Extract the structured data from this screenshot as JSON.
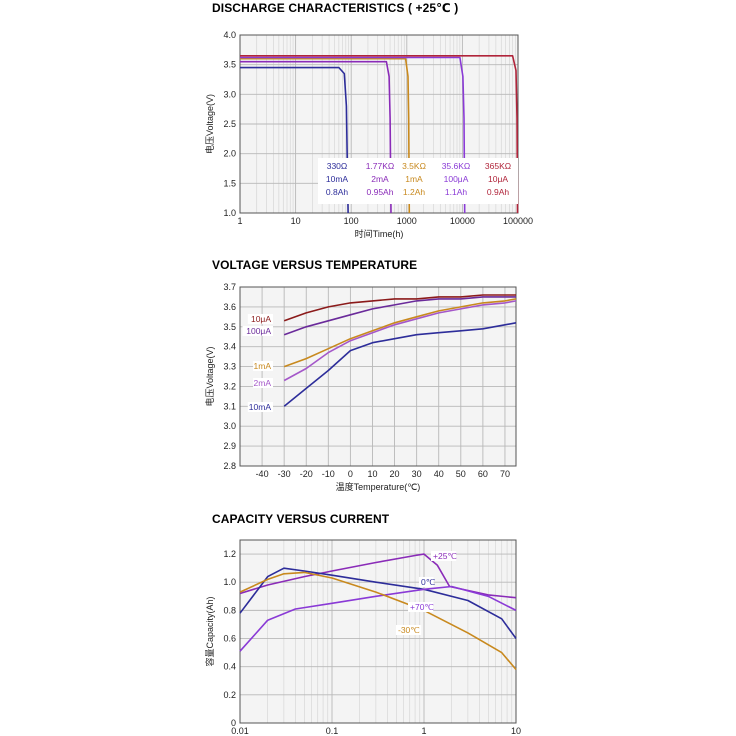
{
  "colors": {
    "navy": "#2d2d9a",
    "purple": "#8a2bb8",
    "orange": "#c8891e",
    "violet": "#8a3ad6",
    "maroon": "#b0243a",
    "dark_red": "#8b1a1a",
    "dark_purple": "#6a2a9a",
    "light_purple": "#a457c9",
    "grid": "#b8b8b8",
    "plot_bg": "#f4f4f4"
  },
  "charts": [
    {
      "title": "DISCHARGE CHARACTERISTICS ( +25℃ )",
      "chart_data": {
        "type": "line",
        "xscale": "log",
        "xlabel": "时间Time(h)",
        "ylabel": "电压Voltage(V)",
        "xlim": [
          1,
          100000
        ],
        "ylim": [
          1.0,
          4.0
        ],
        "xticks": [
          "1",
          "10",
          "100",
          "1000",
          "10000",
          "100000"
        ],
        "yticks": [
          "1.0",
          "1.5",
          "2.0",
          "2.5",
          "3.0",
          "3.5",
          "4.0"
        ],
        "series": [
          {
            "color": "navy",
            "points": [
              [
                1,
                3.45
              ],
              [
                60,
                3.45
              ],
              [
                75,
                3.35
              ],
              [
                82,
                2.8
              ],
              [
                88,
                1.0
              ]
            ]
          },
          {
            "color": "purple",
            "points": [
              [
                1,
                3.55
              ],
              [
                430,
                3.55
              ],
              [
                480,
                3.3
              ],
              [
                500,
                2.6
              ],
              [
                520,
                1.0
              ]
            ]
          },
          {
            "color": "orange",
            "points": [
              [
                1,
                3.6
              ],
              [
                950,
                3.6
              ],
              [
                1050,
                3.3
              ],
              [
                1080,
                2.6
              ],
              [
                1110,
                1.0
              ]
            ]
          },
          {
            "color": "violet",
            "points": [
              [
                1,
                3.62
              ],
              [
                9000,
                3.62
              ],
              [
                10200,
                3.3
              ],
              [
                10700,
                2.6
              ],
              [
                11000,
                1.0
              ]
            ]
          },
          {
            "color": "maroon",
            "points": [
              [
                1,
                3.65
              ],
              [
                80000,
                3.65
              ],
              [
                92000,
                3.4
              ],
              [
                96000,
                2.6
              ],
              [
                98000,
                1.0
              ]
            ]
          }
        ],
        "legend_table": [
          {
            "color": "navy",
            "lines": [
              "330Ω",
              "10mA",
              "0.8Ah"
            ]
          },
          {
            "color": "purple",
            "lines": [
              "1.77KΩ",
              "2mA",
              "0.95Ah"
            ]
          },
          {
            "color": "orange",
            "lines": [
              "3.5KΩ",
              "1mA",
              "1.2Ah"
            ]
          },
          {
            "color": "violet",
            "lines": [
              "35.6KΩ",
              "100μA",
              "1.1Ah"
            ]
          },
          {
            "color": "maroon",
            "lines": [
              "365KΩ",
              "10μA",
              "0.9Ah"
            ]
          }
        ]
      }
    },
    {
      "title": "VOLTAGE VERSUS TEMPERATURE",
      "chart_data": {
        "type": "line",
        "xscale": "linear",
        "xlabel": "温度Temperature(℃)",
        "ylabel": "电压Voltage(V)",
        "xlim": [
          -50,
          75
        ],
        "ylim": [
          2.8,
          3.7
        ],
        "xticks": [
          "-40",
          "-30",
          "-20",
          "-10",
          "0",
          "10",
          "20",
          "30",
          "40",
          "50",
          "60",
          "70"
        ],
        "yticks": [
          "2.8",
          "2.9",
          "3.0",
          "3.1",
          "3.2",
          "3.3",
          "3.4",
          "3.5",
          "3.6",
          "3.7"
        ],
        "series": [
          {
            "name": "10μA",
            "color": "dark_red",
            "points": [
              [
                -30,
                3.53
              ],
              [
                -20,
                3.57
              ],
              [
                -10,
                3.6
              ],
              [
                0,
                3.62
              ],
              [
                10,
                3.63
              ],
              [
                20,
                3.64
              ],
              [
                30,
                3.64
              ],
              [
                40,
                3.65
              ],
              [
                50,
                3.65
              ],
              [
                60,
                3.66
              ],
              [
                70,
                3.66
              ],
              [
                75,
                3.66
              ]
            ]
          },
          {
            "name": "100μA",
            "color": "dark_purple",
            "points": [
              [
                -30,
                3.46
              ],
              [
                -20,
                3.5
              ],
              [
                -10,
                3.53
              ],
              [
                0,
                3.56
              ],
              [
                10,
                3.59
              ],
              [
                20,
                3.61
              ],
              [
                30,
                3.63
              ],
              [
                40,
                3.64
              ],
              [
                50,
                3.64
              ],
              [
                60,
                3.65
              ],
              [
                70,
                3.65
              ],
              [
                75,
                3.65
              ]
            ]
          },
          {
            "name": "1mA",
            "color": "orange",
            "points": [
              [
                -30,
                3.3
              ],
              [
                -20,
                3.34
              ],
              [
                -10,
                3.39
              ],
              [
                0,
                3.44
              ],
              [
                10,
                3.48
              ],
              [
                20,
                3.52
              ],
              [
                30,
                3.55
              ],
              [
                40,
                3.58
              ],
              [
                50,
                3.6
              ],
              [
                60,
                3.62
              ],
              [
                70,
                3.63
              ],
              [
                75,
                3.64
              ]
            ]
          },
          {
            "name": "2mA",
            "color": "light_purple",
            "points": [
              [
                -30,
                3.23
              ],
              [
                -20,
                3.29
              ],
              [
                -10,
                3.37
              ],
              [
                0,
                3.43
              ],
              [
                10,
                3.47
              ],
              [
                20,
                3.51
              ],
              [
                30,
                3.54
              ],
              [
                40,
                3.57
              ],
              [
                50,
                3.59
              ],
              [
                60,
                3.61
              ],
              [
                70,
                3.62
              ],
              [
                75,
                3.63
              ]
            ]
          },
          {
            "name": "10mA",
            "color": "navy",
            "points": [
              [
                -30,
                3.1
              ],
              [
                -20,
                3.19
              ],
              [
                -10,
                3.28
              ],
              [
                0,
                3.38
              ],
              [
                10,
                3.42
              ],
              [
                20,
                3.44
              ],
              [
                30,
                3.46
              ],
              [
                40,
                3.47
              ],
              [
                50,
                3.48
              ],
              [
                60,
                3.49
              ],
              [
                70,
                3.51
              ],
              [
                75,
                3.52
              ]
            ]
          }
        ]
      }
    },
    {
      "title": "CAPACITY VERSUS CURRENT",
      "chart_data": {
        "type": "line",
        "xscale": "log",
        "xlabel": "",
        "ylabel": "容量Capacity(Ah)",
        "xlim": [
          0.01,
          10
        ],
        "ylim": [
          0,
          1.3
        ],
        "xticks": [
          "0.01",
          "0.1",
          "1",
          "10"
        ],
        "yticks": [
          "0",
          "0.2",
          "0.4",
          "0.6",
          "0.8",
          "1.0",
          "1.2"
        ],
        "series": [
          {
            "name": "+25℃",
            "color": "purple",
            "points": [
              [
                0.01,
                0.92
              ],
              [
                0.02,
                0.98
              ],
              [
                0.05,
                1.04
              ],
              [
                0.1,
                1.08
              ],
              [
                0.3,
                1.14
              ],
              [
                0.8,
                1.19
              ],
              [
                1.0,
                1.2
              ],
              [
                1.4,
                1.12
              ],
              [
                1.9,
                0.97
              ],
              [
                5,
                0.91
              ],
              [
                10,
                0.89
              ]
            ]
          },
          {
            "name": "0℃",
            "color": "navy",
            "points": [
              [
                0.01,
                0.78
              ],
              [
                0.02,
                1.04
              ],
              [
                0.03,
                1.1
              ],
              [
                0.05,
                1.08
              ],
              [
                0.1,
                1.05
              ],
              [
                0.3,
                1.0
              ],
              [
                1,
                0.95
              ],
              [
                3,
                0.87
              ],
              [
                7,
                0.74
              ],
              [
                10,
                0.6
              ]
            ]
          },
          {
            "name": "+70℃",
            "color": "violet",
            "points": [
              [
                0.01,
                0.51
              ],
              [
                0.02,
                0.73
              ],
              [
                0.04,
                0.81
              ],
              [
                0.1,
                0.85
              ],
              [
                0.3,
                0.9
              ],
              [
                1,
                0.95
              ],
              [
                2,
                0.97
              ],
              [
                5,
                0.9
              ],
              [
                10,
                0.8
              ]
            ]
          },
          {
            "name": "-30℃",
            "color": "orange",
            "points": [
              [
                0.01,
                0.93
              ],
              [
                0.02,
                1.02
              ],
              [
                0.03,
                1.06
              ],
              [
                0.05,
                1.07
              ],
              [
                0.1,
                1.03
              ],
              [
                0.3,
                0.93
              ],
              [
                1,
                0.8
              ],
              [
                3,
                0.64
              ],
              [
                7,
                0.5
              ],
              [
                10,
                0.38
              ]
            ]
          }
        ]
      }
    }
  ]
}
